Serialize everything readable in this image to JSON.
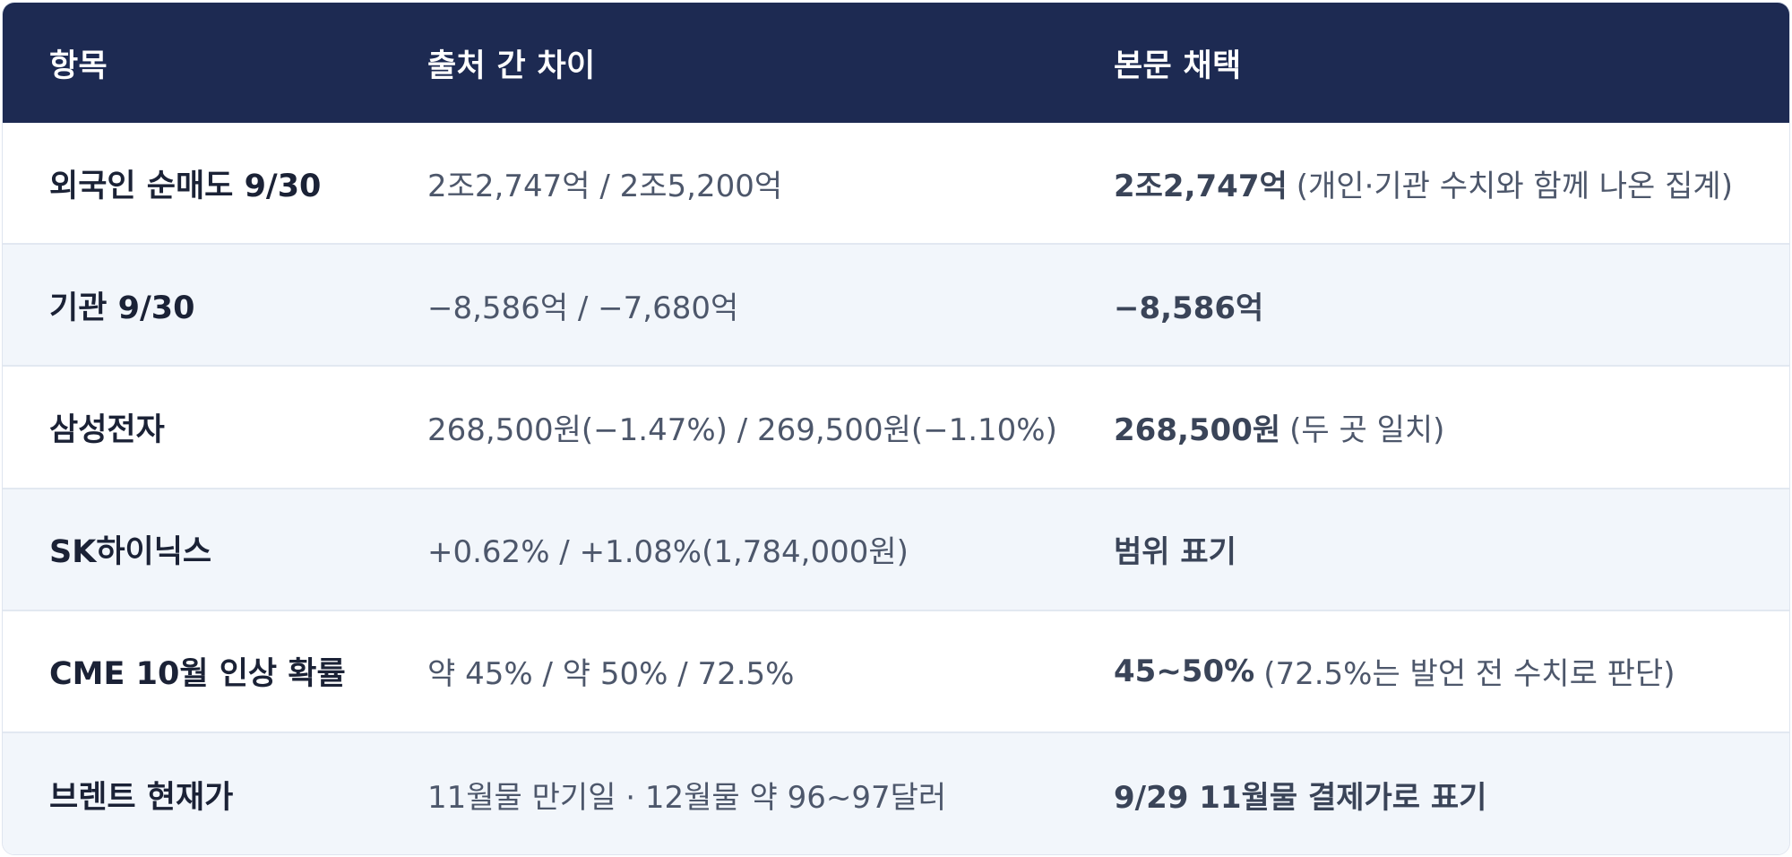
{
  "header": {
    "col_item": "항목",
    "col_diff": "출처 간 차이",
    "col_adopt": "본문 채택"
  },
  "rows": [
    {
      "item": "외국인 순매도 9/30",
      "diff": "2조2,747억 / 2조5,200억",
      "adopt_bold": "2조2,747억",
      "adopt_note": "(개인·기관 수치와 함께 나온 집계)"
    },
    {
      "item": "기관 9/30",
      "diff": "−8,586억 / −7,680억",
      "adopt_bold": "−8,586억",
      "adopt_note": ""
    },
    {
      "item": "삼성전자",
      "diff": "268,500원(−1.47%) / 269,500원(−1.10%)",
      "adopt_bold": "268,500원",
      "adopt_note": "(두 곳 일치)"
    },
    {
      "item": "SK하이닉스",
      "diff": "+0.62% / +1.08%(1,784,000원)",
      "adopt_bold": "범위 표기",
      "adopt_note": ""
    },
    {
      "item": "CME 10월 인상 확률",
      "diff": "약 45% / 약 50% / 72.5%",
      "adopt_bold": "45~50%",
      "adopt_note": "(72.5%는 발언 전 수치로 판단)"
    },
    {
      "item": "브렌트 현재가",
      "diff": "11월물 만기일 · 12월물 약 96~97달러",
      "adopt_bold": "9/29 11월물 결제가로 표기",
      "adopt_note": ""
    }
  ],
  "colors": {
    "header_bg": "#1d2a52",
    "row_alt_bg": "#f2f6fb",
    "text_dark": "#1b2236",
    "text_muted": "#4d576b"
  }
}
